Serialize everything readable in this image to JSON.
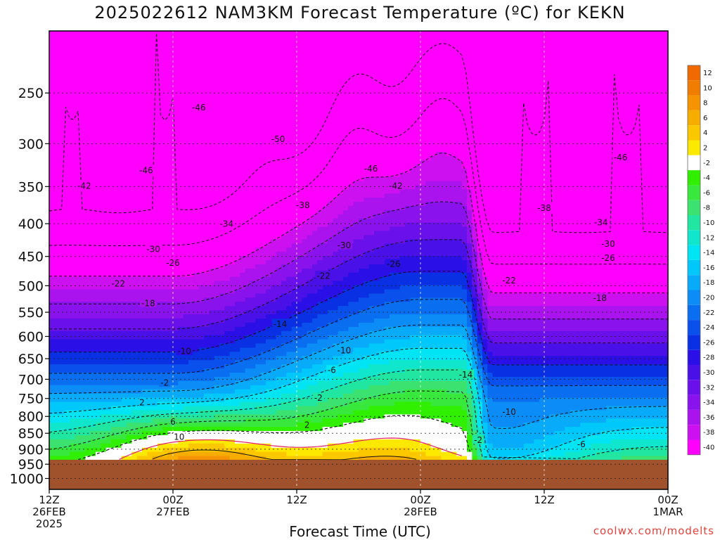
{
  "title": "2025022612 NAM3KM Forecast Temperature (ºC) for KEKN",
  "x_axis_title": "Forecast Time (UTC)",
  "credit": "coolwx.com/modelts",
  "chart_data": {
    "type": "heatmap",
    "title": "2025022612 NAM3KM Forecast Temperature (ºC) for KEKN",
    "xlabel": "Forecast Time (UTC)",
    "ylabel": "",
    "x_ticks": [
      {
        "hour": 0,
        "lines": [
          "12Z",
          "26FEB",
          "2025"
        ]
      },
      {
        "hour": 12,
        "lines": [
          "00Z",
          "27FEB"
        ]
      },
      {
        "hour": 24,
        "lines": [
          "12Z"
        ]
      },
      {
        "hour": 36,
        "lines": [
          "00Z",
          "28FEB"
        ]
      },
      {
        "hour": 48,
        "lines": [
          "12Z"
        ]
      },
      {
        "hour": 60,
        "lines": [
          "00Z",
          "1MAR"
        ]
      }
    ],
    "xlim_hours": [
      0,
      60
    ],
    "y_ticks_hpa": [
      250,
      300,
      350,
      400,
      450,
      500,
      550,
      600,
      650,
      700,
      750,
      800,
      850,
      900,
      950,
      1000
    ],
    "ylim_hpa": [
      1040,
      200
    ],
    "surface_pressure_hpa": 935,
    "colorbar_levels": [
      12,
      10,
      8,
      6,
      4,
      2,
      -2,
      -4,
      -6,
      -8,
      -10,
      -12,
      -14,
      -16,
      -18,
      -20,
      -22,
      -24,
      -26,
      -28,
      -30,
      -32,
      -34,
      -36,
      -38,
      -40
    ],
    "colorbar_colors": [
      "#f06a00",
      "#f07d00",
      "#f59400",
      "#f7ac00",
      "#fbc800",
      "#fde800",
      "#ffffff",
      "#30f000",
      "#38e83c",
      "#3ce270",
      "#20e6a2",
      "#10e6cc",
      "#00e4f4",
      "#00c8fa",
      "#08aafa",
      "#0c8cf6",
      "#0a6ef0",
      "#0a50ec",
      "#0a30e4",
      "#2a10e6",
      "#4a10e8",
      "#6a10ea",
      "#8a12ec",
      "#aa12ee",
      "#cc10f0",
      "#ff00ff"
    ],
    "isotherm_levels": [
      -50,
      -46,
      -42,
      -38,
      -34,
      -30,
      -26,
      -22,
      -18,
      -14,
      -10,
      -6,
      -2,
      2,
      6,
      10
    ],
    "contour_labels": [
      {
        "text": "-46",
        "hour": 14.5,
        "hpa": 263
      },
      {
        "text": "-50",
        "hour": 22.2,
        "hpa": 295
      },
      {
        "text": "-46",
        "hour": 9.4,
        "hpa": 330
      },
      {
        "text": "-46",
        "hour": 31.2,
        "hpa": 328
      },
      {
        "text": "-46",
        "hour": 55.4,
        "hpa": 315
      },
      {
        "text": "-42",
        "hour": 3.4,
        "hpa": 349
      },
      {
        "text": "-42",
        "hour": 33.6,
        "hpa": 349
      },
      {
        "text": "-38",
        "hour": 24.6,
        "hpa": 374
      },
      {
        "text": "-38",
        "hour": 48.0,
        "hpa": 378
      },
      {
        "text": "-34",
        "hour": 17.2,
        "hpa": 400
      },
      {
        "text": "-34",
        "hour": 53.5,
        "hpa": 398
      },
      {
        "text": "-30",
        "hour": 10.1,
        "hpa": 438
      },
      {
        "text": "-30",
        "hour": 28.6,
        "hpa": 432
      },
      {
        "text": "-30",
        "hour": 54.2,
        "hpa": 430
      },
      {
        "text": "-26",
        "hour": 12.0,
        "hpa": 460
      },
      {
        "text": "-26",
        "hour": 33.4,
        "hpa": 462
      },
      {
        "text": "-26",
        "hour": 54.2,
        "hpa": 452
      },
      {
        "text": "-22",
        "hour": 6.7,
        "hpa": 496
      },
      {
        "text": "-22",
        "hour": 26.6,
        "hpa": 482
      },
      {
        "text": "-22",
        "hour": 44.6,
        "hpa": 490
      },
      {
        "text": "-18",
        "hour": 9.6,
        "hpa": 532
      },
      {
        "text": "-18",
        "hour": 53.4,
        "hpa": 522
      },
      {
        "text": "-14",
        "hour": 22.4,
        "hpa": 573
      },
      {
        "text": "-14",
        "hour": 40.4,
        "hpa": 688
      },
      {
        "text": "-10",
        "hour": 13.1,
        "hpa": 632
      },
      {
        "text": "-10",
        "hour": 28.6,
        "hpa": 630
      },
      {
        "text": "-10",
        "hour": 44.6,
        "hpa": 786
      },
      {
        "text": "-6",
        "hour": 27.4,
        "hpa": 677
      },
      {
        "text": "-6",
        "hour": 51.6,
        "hpa": 884
      },
      {
        "text": "-2",
        "hour": 11.2,
        "hpa": 708
      },
      {
        "text": "-2",
        "hour": 26.1,
        "hpa": 748
      },
      {
        "text": "-2",
        "hour": 41.6,
        "hpa": 870
      },
      {
        "text": "2",
        "hour": 9.0,
        "hpa": 760
      },
      {
        "text": "2",
        "hour": 25.0,
        "hpa": 824
      },
      {
        "text": "6",
        "hour": 12.0,
        "hpa": 815
      },
      {
        "text": "10",
        "hour": 12.6,
        "hpa": 860
      }
    ]
  }
}
